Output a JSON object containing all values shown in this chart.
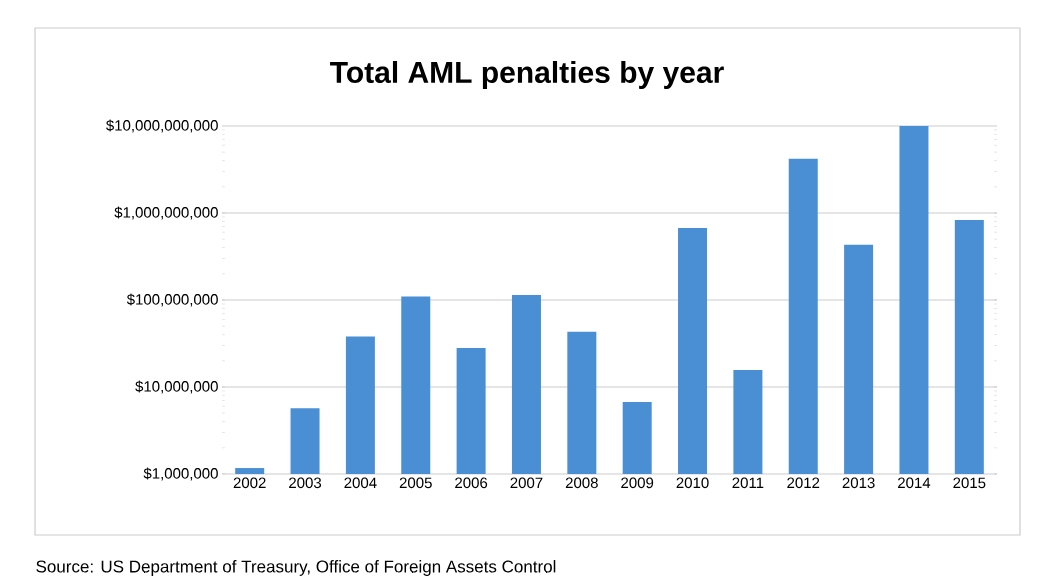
{
  "chart_data": {
    "type": "bar",
    "title": "Total AML penalties by year",
    "categories": [
      "2002",
      "2003",
      "2004",
      "2005",
      "2006",
      "2007",
      "2008",
      "2009",
      "2010",
      "2011",
      "2012",
      "2013",
      "2014",
      "2015"
    ],
    "values": [
      1170000,
      5700000,
      38000000,
      110000000,
      28000000,
      114000000,
      43000000,
      6700000,
      670000000,
      15700000,
      4200000000,
      430000000,
      10000000000,
      830000000
    ],
    "color": "#4a8fd4",
    "log": "y",
    "grid": "y",
    "ylim": [
      1000000,
      10000000000
    ],
    "yticks": [
      {
        "value": 1000000,
        "label": "$1,000,000"
      },
      {
        "value": 10000000,
        "label": "$10,000,000"
      },
      {
        "value": 100000000,
        "label": "$100,000,000"
      },
      {
        "value": 1000000000,
        "label": "$1,000,000,000"
      },
      {
        "value": 10000000000,
        "label": "$10,000,000,000"
      }
    ],
    "annotations": [
      "Source:  US Department of Treasury, Office of Foreign Assets Control"
    ]
  }
}
